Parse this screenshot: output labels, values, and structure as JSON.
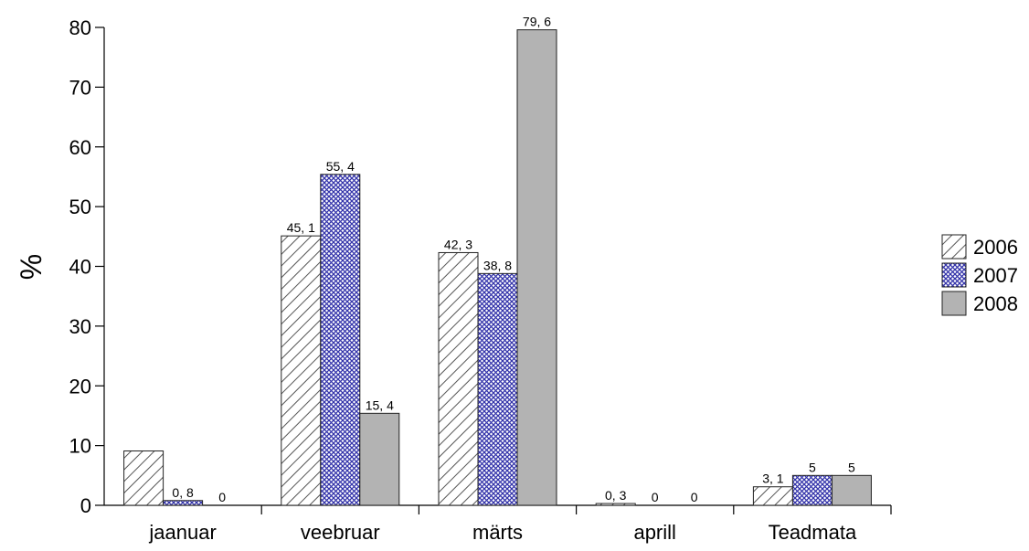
{
  "chart_data": {
    "type": "bar",
    "categories": [
      "jaanuar",
      "veebruar",
      "märts",
      "aprill",
      "Teadmata"
    ],
    "series": [
      {
        "name": "2006",
        "values": [
          9.1,
          45.1,
          42.3,
          0.3,
          3.1
        ],
        "labels": [
          "",
          "45, 1",
          "42, 3",
          "0, 3",
          "3, 1"
        ],
        "pattern": "hatch"
      },
      {
        "name": "2007",
        "values": [
          0.8,
          55.4,
          38.8,
          0,
          5
        ],
        "labels": [
          "0, 8",
          "55, 4",
          "38, 8",
          "0",
          "5"
        ],
        "pattern": "crosshatch"
      },
      {
        "name": "2008",
        "values": [
          0,
          15.4,
          79.6,
          0,
          5
        ],
        "labels": [
          "0",
          "15, 4",
          "79, 6",
          "0",
          "5"
        ],
        "pattern": "solid"
      }
    ],
    "title": "",
    "xlabel": "",
    "ylabel": "%",
    "ylim": [
      0,
      80
    ],
    "yticks": [
      0,
      10,
      20,
      30,
      40,
      50,
      60,
      70,
      80
    ],
    "legend_position": "right",
    "colors": {
      "hatch": "#555555",
      "crosshatch": "#3333aa",
      "solid": "#b3b3b3",
      "axis": "#000000"
    }
  }
}
